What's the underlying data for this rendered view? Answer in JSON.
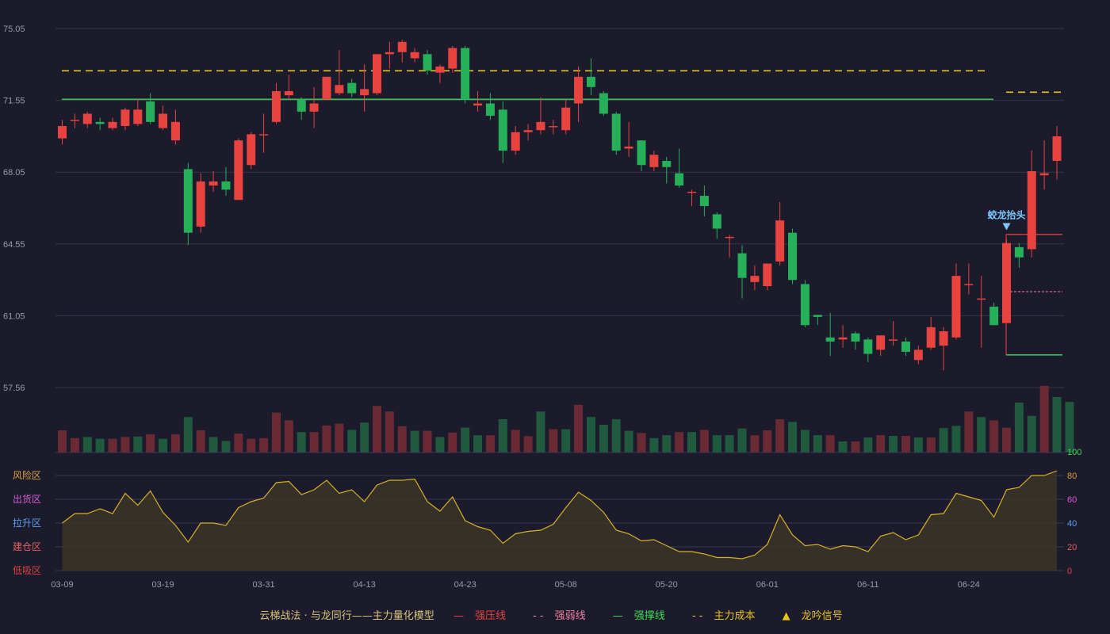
{
  "chart_data": {
    "type": "candlestick",
    "price_axis": {
      "ticks": [
        "75.05",
        "71.55",
        "68.05",
        "64.55",
        "61.05",
        "57.56"
      ],
      "range": [
        57.56,
        75.05
      ]
    },
    "x_ticks": [
      "03-09",
      "03-19",
      "03-31",
      "04-13",
      "04-23",
      "05-08",
      "05-20",
      "06-01",
      "06-11",
      "06-24"
    ],
    "candles": [
      [
        69.7,
        70.3,
        70.6,
        69.4
      ],
      [
        70.6,
        70.6,
        70.9,
        70.2
      ],
      [
        70.4,
        70.9,
        71.0,
        70.2
      ],
      [
        70.5,
        70.4,
        70.7,
        70.1
      ],
      [
        70.2,
        70.5,
        70.7,
        70.1
      ],
      [
        70.3,
        71.1,
        71.2,
        70.1
      ],
      [
        70.4,
        71.1,
        71.6,
        70.3
      ],
      [
        71.5,
        70.5,
        71.9,
        70.4
      ],
      [
        70.2,
        70.9,
        71.3,
        70.1
      ],
      [
        69.6,
        70.5,
        71.1,
        69.4
      ],
      [
        68.2,
        65.1,
        68.5,
        64.5
      ],
      [
        65.4,
        67.6,
        68.0,
        65.1
      ],
      [
        67.4,
        67.6,
        68.1,
        67.1
      ],
      [
        67.6,
        67.2,
        68.3,
        66.9
      ],
      [
        66.7,
        69.6,
        69.7,
        66.7
      ],
      [
        68.4,
        69.9,
        70.0,
        68.2
      ],
      [
        69.9,
        69.9,
        70.9,
        69.0
      ],
      [
        70.5,
        72.0,
        72.4,
        70.4
      ],
      [
        71.8,
        72.0,
        72.8,
        71.6
      ],
      [
        71.6,
        71.0,
        71.7,
        70.6
      ],
      [
        71.0,
        71.4,
        72.2,
        70.2
      ],
      [
        71.6,
        72.7,
        72.7,
        71.6
      ],
      [
        71.9,
        72.3,
        74.0,
        71.8
      ],
      [
        72.4,
        71.9,
        72.6,
        71.7
      ],
      [
        71.8,
        72.1,
        73.3,
        71.0
      ],
      [
        71.9,
        73.8,
        73.8,
        71.8
      ],
      [
        73.8,
        73.9,
        74.4,
        73.1
      ],
      [
        73.9,
        74.4,
        74.5,
        73.4
      ],
      [
        73.6,
        73.9,
        74.1,
        73.4
      ],
      [
        73.8,
        73.0,
        74.0,
        72.8
      ],
      [
        72.9,
        73.2,
        73.3,
        72.4
      ],
      [
        73.1,
        74.1,
        74.2,
        72.9
      ],
      [
        74.1,
        71.6,
        74.2,
        71.4
      ],
      [
        71.3,
        71.4,
        72.0,
        71.0
      ],
      [
        71.4,
        70.8,
        71.9,
        70.6
      ],
      [
        71.1,
        69.1,
        71.5,
        68.5
      ],
      [
        69.1,
        70.0,
        70.3,
        68.9
      ],
      [
        70.0,
        70.1,
        70.4,
        69.6
      ],
      [
        70.1,
        70.5,
        71.7,
        69.9
      ],
      [
        70.3,
        70.3,
        70.6,
        69.9
      ],
      [
        70.1,
        71.2,
        71.6,
        69.9
      ],
      [
        71.4,
        72.7,
        73.2,
        70.5
      ],
      [
        72.7,
        72.2,
        73.6,
        71.8
      ],
      [
        71.9,
        70.9,
        72.0,
        70.8
      ],
      [
        70.9,
        69.1,
        71.0,
        68.9
      ],
      [
        69.2,
        69.3,
        70.5,
        68.8
      ],
      [
        69.6,
        68.4,
        69.6,
        68.1
      ],
      [
        68.3,
        68.9,
        69.1,
        68.1
      ],
      [
        68.6,
        68.3,
        68.8,
        67.5
      ],
      [
        68.0,
        67.4,
        69.2,
        67.3
      ],
      [
        67.1,
        67.1,
        67.2,
        66.4
      ],
      [
        66.9,
        66.4,
        67.4,
        65.9
      ],
      [
        66.0,
        65.3,
        66.1,
        64.8
      ],
      [
        64.9,
        64.9,
        65.0,
        63.9
      ],
      [
        64.1,
        62.9,
        64.5,
        61.9
      ],
      [
        62.7,
        63.0,
        63.5,
        62.3
      ],
      [
        62.5,
        63.6,
        63.6,
        62.3
      ],
      [
        63.7,
        65.7,
        66.6,
        63.5
      ],
      [
        65.1,
        62.8,
        65.3,
        62.6
      ],
      [
        62.6,
        60.6,
        62.8,
        60.5
      ],
      [
        61.1,
        61.0,
        61.1,
        60.6
      ],
      [
        60.0,
        59.8,
        61.2,
        59.1
      ],
      [
        59.9,
        60.0,
        60.6,
        59.5
      ],
      [
        60.2,
        59.8,
        60.3,
        59.4
      ],
      [
        59.9,
        59.2,
        60.0,
        58.8
      ],
      [
        59.4,
        60.1,
        60.1,
        59.1
      ],
      [
        59.9,
        59.9,
        60.8,
        59.6
      ],
      [
        59.8,
        59.3,
        60.0,
        59.1
      ],
      [
        58.9,
        59.4,
        59.6,
        58.7
      ],
      [
        59.5,
        60.5,
        61.0,
        59.4
      ],
      [
        59.6,
        60.3,
        60.5,
        58.4
      ],
      [
        60.0,
        63.0,
        63.6,
        59.9
      ],
      [
        62.6,
        62.6,
        63.6,
        62.1
      ],
      [
        61.9,
        61.9,
        63.0,
        59.5
      ],
      [
        61.5,
        60.6,
        61.7,
        60.6
      ],
      [
        60.7,
        64.6,
        64.8,
        60.7
      ],
      [
        64.4,
        63.9,
        64.6,
        63.4
      ],
      [
        64.3,
        68.1,
        69.1,
        63.9
      ],
      [
        67.9,
        68.0,
        69.6,
        67.2
      ],
      [
        68.6,
        69.8,
        70.3,
        67.7
      ]
    ],
    "volumes": [
      [
        1.0,
        "down"
      ],
      [
        0.65,
        "down"
      ],
      [
        0.7,
        "up"
      ],
      [
        0.62,
        "up"
      ],
      [
        0.62,
        "down"
      ],
      [
        0.7,
        "down"
      ],
      [
        0.72,
        "up"
      ],
      [
        0.82,
        "down"
      ],
      [
        0.62,
        "up"
      ],
      [
        0.82,
        "down"
      ],
      [
        1.6,
        "up"
      ],
      [
        1.0,
        "down"
      ],
      [
        0.7,
        "up"
      ],
      [
        0.52,
        "up"
      ],
      [
        0.85,
        "down"
      ],
      [
        0.62,
        "down"
      ],
      [
        0.65,
        "down"
      ],
      [
        1.8,
        "down"
      ],
      [
        1.45,
        "down"
      ],
      [
        0.92,
        "up"
      ],
      [
        0.92,
        "down"
      ],
      [
        1.22,
        "down"
      ],
      [
        1.3,
        "down"
      ],
      [
        1.02,
        "up"
      ],
      [
        1.35,
        "up"
      ],
      [
        2.1,
        "down"
      ],
      [
        1.85,
        "down"
      ],
      [
        1.18,
        "down"
      ],
      [
        0.98,
        "up"
      ],
      [
        0.98,
        "down"
      ],
      [
        0.7,
        "up"
      ],
      [
        0.9,
        "down"
      ],
      [
        1.12,
        "up"
      ],
      [
        0.78,
        "up"
      ],
      [
        0.78,
        "down"
      ],
      [
        1.5,
        "up"
      ],
      [
        1.02,
        "down"
      ],
      [
        0.74,
        "down"
      ],
      [
        1.85,
        "up"
      ],
      [
        1.05,
        "down"
      ],
      [
        1.05,
        "up"
      ],
      [
        2.15,
        "down"
      ],
      [
        1.6,
        "up"
      ],
      [
        1.25,
        "up"
      ],
      [
        1.5,
        "up"
      ],
      [
        0.98,
        "up"
      ],
      [
        0.88,
        "down"
      ],
      [
        0.65,
        "up"
      ],
      [
        0.78,
        "up"
      ],
      [
        0.92,
        "down"
      ],
      [
        0.92,
        "up"
      ],
      [
        1.02,
        "down"
      ],
      [
        0.78,
        "up"
      ],
      [
        0.78,
        "up"
      ],
      [
        1.08,
        "up"
      ],
      [
        0.78,
        "down"
      ],
      [
        1.0,
        "down"
      ],
      [
        1.5,
        "down"
      ],
      [
        1.38,
        "up"
      ],
      [
        1.02,
        "up"
      ],
      [
        0.78,
        "up"
      ],
      [
        0.78,
        "down"
      ],
      [
        0.5,
        "up"
      ],
      [
        0.5,
        "down"
      ],
      [
        0.68,
        "up"
      ],
      [
        0.78,
        "down"
      ],
      [
        0.75,
        "up"
      ],
      [
        0.75,
        "down"
      ],
      [
        0.68,
        "up"
      ],
      [
        0.68,
        "down"
      ],
      [
        1.1,
        "up"
      ],
      [
        1.2,
        "up"
      ],
      [
        1.85,
        "down"
      ],
      [
        1.6,
        "up"
      ],
      [
        1.45,
        "down"
      ],
      [
        1.12,
        "down"
      ],
      [
        2.25,
        "up"
      ],
      [
        1.65,
        "up"
      ],
      [
        3.0,
        "down"
      ],
      [
        2.5,
        "up"
      ],
      [
        2.28,
        "up"
      ]
    ],
    "indicator_axis": {
      "ticks": [
        "0",
        "20",
        "40",
        "60",
        "80",
        "100"
      ],
      "range": [
        0,
        100
      ]
    },
    "indicator_values": [
      40,
      48,
      48,
      52,
      48,
      65,
      55,
      67,
      49,
      38,
      24,
      40,
      40,
      38,
      53,
      58,
      61,
      74,
      75,
      64,
      68,
      76,
      65,
      68,
      58,
      72,
      76,
      76,
      77,
      58,
      50,
      62,
      42,
      37,
      34,
      23,
      31,
      33,
      34,
      39,
      53,
      66,
      59,
      49,
      34,
      31,
      25,
      26,
      21,
      16,
      16,
      14,
      11,
      11,
      10,
      13,
      22,
      47,
      30,
      21,
      22,
      18,
      21,
      20,
      16,
      29,
      32,
      26,
      30,
      47,
      48,
      65,
      62,
      59,
      45,
      68,
      70,
      80,
      80,
      84
    ],
    "zones": [
      {
        "label": "风险区",
        "color": "#e0a040"
      },
      {
        "label": "出货区",
        "color": "#d85ad8"
      },
      {
        "label": "拉升区",
        "color": "#5aa0f0"
      },
      {
        "label": "建仓区",
        "color": "#e06060"
      },
      {
        "label": "低吸区",
        "color": "#e04040"
      }
    ],
    "reference_lines": {
      "main_cost": 72.99,
      "support_main": 71.6,
      "main_cost_right": 71.95,
      "strong_resist": 65.02,
      "weak_line": 62.23,
      "support_right": 59.15
    },
    "signal_annotation": {
      "text": "蛟龙抬头",
      "candle_index": 75
    },
    "colors": {
      "up": "#e8433f",
      "down": "#26b05a",
      "cost": "#e9c21d",
      "support": "#3fbf55",
      "resist": "#e8433f",
      "indicator": "#d8b124"
    }
  },
  "legend": {
    "title": "云梯战法 · 与龙同行——主力量化模型",
    "items": [
      {
        "mark": "—",
        "label": "强压线",
        "color": "#e8433f"
      },
      {
        "mark": "- -",
        "label": "强弱线",
        "color": "#f080a0"
      },
      {
        "mark": "—",
        "label": "强撑线",
        "color": "#3fdc55"
      },
      {
        "mark": "- -",
        "label": "主力成本",
        "color": "#e9c21d"
      },
      {
        "mark": "▲",
        "label": "龙吟信号",
        "color": "#e9c21d"
      }
    ]
  }
}
